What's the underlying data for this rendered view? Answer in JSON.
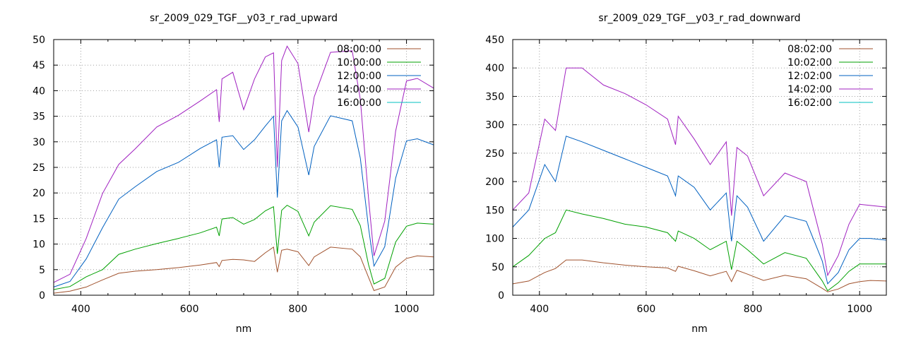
{
  "chart_data": [
    {
      "type": "line",
      "title": "sr_2009_029_TGF__y03_r_rad_upward",
      "xlabel": "nm",
      "ylabel": "",
      "xlim": [
        350,
        1050
      ],
      "ylim": [
        0,
        50
      ],
      "xticks": [
        400,
        600,
        800,
        1000
      ],
      "yticks": [
        0,
        5,
        10,
        15,
        20,
        25,
        30,
        35,
        40,
        45,
        50
      ],
      "grid": true,
      "legend_position": "top-right",
      "series": [
        {
          "name": "08:00:00",
          "color": "#a0522d",
          "x": [
            350,
            380,
            410,
            440,
            470,
            500,
            540,
            580,
            620,
            650,
            655,
            660,
            680,
            700,
            720,
            740,
            755,
            762,
            770,
            780,
            800,
            820,
            830,
            860,
            900,
            915,
            930,
            940,
            960,
            980,
            1000,
            1020,
            1050
          ],
          "y": [
            0.4,
            0.8,
            1.6,
            3.0,
            4.3,
            4.7,
            5.0,
            5.4,
            5.9,
            6.4,
            5.6,
            6.8,
            7.0,
            6.9,
            6.6,
            8.3,
            9.4,
            4.5,
            8.8,
            9.0,
            8.5,
            5.8,
            7.5,
            9.4,
            9.0,
            7.5,
            3.5,
            0.9,
            1.6,
            5.5,
            7.2,
            7.7,
            7.5
          ]
        },
        {
          "name": "10:00:00",
          "color": "#00a000",
          "x": [
            350,
            380,
            410,
            440,
            470,
            500,
            540,
            580,
            620,
            650,
            655,
            660,
            680,
            700,
            720,
            740,
            755,
            762,
            770,
            780,
            800,
            820,
            830,
            860,
            900,
            915,
            930,
            940,
            960,
            980,
            1000,
            1020,
            1050
          ],
          "y": [
            1.1,
            1.7,
            3.6,
            5.0,
            8.0,
            9.0,
            10.1,
            11.1,
            12.2,
            13.3,
            11.6,
            14.9,
            15.2,
            13.9,
            14.8,
            16.5,
            17.3,
            8.1,
            16.6,
            17.6,
            16.4,
            11.6,
            14.3,
            17.5,
            16.8,
            13.6,
            6.0,
            2.2,
            3.3,
            10.4,
            13.5,
            14.1,
            13.9
          ]
        },
        {
          "name": "12:00:00",
          "color": "#0060c0",
          "x": [
            350,
            380,
            410,
            440,
            470,
            500,
            540,
            580,
            620,
            650,
            655,
            660,
            680,
            700,
            720,
            740,
            755,
            762,
            770,
            780,
            800,
            820,
            830,
            860,
            900,
            915,
            930,
            940,
            960,
            980,
            1000,
            1020,
            1050
          ],
          "y": [
            1.6,
            2.7,
            7.1,
            13.2,
            18.8,
            21.2,
            24.2,
            26.0,
            28.7,
            30.4,
            25.0,
            30.9,
            31.2,
            28.5,
            30.4,
            33.1,
            35.0,
            19.1,
            34.1,
            36.1,
            32.9,
            23.5,
            29.1,
            35.1,
            34.1,
            26.8,
            13.2,
            5.7,
            9.5,
            22.9,
            30.2,
            30.6,
            29.4
          ]
        },
        {
          "name": "14:00:00",
          "color": "#a020c0",
          "x": [
            350,
            380,
            410,
            440,
            470,
            500,
            540,
            580,
            620,
            650,
            655,
            660,
            680,
            700,
            720,
            740,
            755,
            762,
            770,
            780,
            800,
            820,
            830,
            860,
            900,
            915,
            930,
            940,
            960,
            980,
            1000,
            1020,
            1050
          ],
          "y": [
            2.5,
            4.1,
            11.1,
            19.9,
            25.6,
            28.6,
            32.9,
            35.2,
            38.0,
            40.2,
            33.9,
            42.3,
            43.6,
            36.3,
            42.3,
            46.6,
            47.4,
            25.1,
            45.9,
            48.7,
            45.3,
            31.9,
            38.8,
            47.5,
            47.8,
            38.3,
            19.0,
            7.7,
            14.5,
            32.1,
            41.9,
            42.4,
            40.5
          ]
        },
        {
          "name": "16:00:00",
          "color": "#00c0c0",
          "x": [],
          "y": []
        }
      ]
    },
    {
      "type": "line",
      "title": "sr_2009_029_TGF__y03_r_rad_downward",
      "xlabel": "nm",
      "ylabel": "",
      "xlim": [
        350,
        1050
      ],
      "ylim": [
        0,
        450
      ],
      "xticks": [
        400,
        600,
        800,
        1000
      ],
      "yticks": [
        0,
        50,
        100,
        150,
        200,
        250,
        300,
        350,
        400,
        450
      ],
      "grid": true,
      "legend_position": "top-right",
      "series": [
        {
          "name": "08:02:00",
          "color": "#a0522d",
          "x": [
            350,
            380,
            410,
            430,
            450,
            480,
            520,
            560,
            600,
            640,
            655,
            660,
            690,
            720,
            750,
            760,
            770,
            790,
            820,
            860,
            900,
            930,
            940,
            960,
            980,
            1000,
            1020,
            1050
          ],
          "y": [
            20,
            25,
            40,
            47,
            62,
            62,
            57,
            53,
            50,
            48,
            42,
            51,
            43,
            34,
            42,
            24,
            44,
            37,
            26,
            35,
            29,
            12,
            6,
            11,
            20,
            24,
            26,
            25
          ]
        },
        {
          "name": "10:02:00",
          "color": "#00a000",
          "x": [
            350,
            380,
            410,
            430,
            450,
            480,
            520,
            560,
            600,
            640,
            655,
            660,
            690,
            720,
            750,
            760,
            770,
            790,
            820,
            860,
            900,
            930,
            940,
            960,
            980,
            1000,
            1020,
            1050
          ],
          "y": [
            50,
            70,
            100,
            110,
            150,
            143,
            135,
            125,
            120,
            110,
            95,
            113,
            100,
            80,
            95,
            45,
            95,
            80,
            55,
            75,
            65,
            25,
            8,
            22,
            42,
            55,
            55,
            55
          ]
        },
        {
          "name": "12:02:00",
          "color": "#0060c0",
          "x": [
            350,
            380,
            410,
            430,
            450,
            480,
            520,
            560,
            600,
            640,
            655,
            660,
            690,
            720,
            750,
            760,
            770,
            790,
            820,
            860,
            900,
            930,
            940,
            960,
            980,
            1000,
            1020,
            1050
          ],
          "y": [
            120,
            150,
            230,
            200,
            280,
            270,
            255,
            240,
            225,
            210,
            175,
            210,
            190,
            150,
            180,
            95,
            175,
            155,
            95,
            140,
            130,
            60,
            20,
            40,
            80,
            100,
            100,
            97
          ]
        },
        {
          "name": "14:02:00",
          "color": "#a020c0",
          "x": [
            350,
            380,
            410,
            430,
            450,
            480,
            520,
            560,
            600,
            640,
            655,
            660,
            690,
            720,
            750,
            760,
            770,
            790,
            820,
            860,
            900,
            930,
            940,
            960,
            980,
            1000,
            1020,
            1050
          ],
          "y": [
            150,
            180,
            310,
            290,
            400,
            400,
            370,
            355,
            335,
            310,
            265,
            315,
            275,
            230,
            270,
            140,
            260,
            245,
            175,
            215,
            200,
            90,
            35,
            70,
            125,
            160,
            158,
            155
          ]
        },
        {
          "name": "16:02:00",
          "color": "#00c0c0",
          "x": [],
          "y": []
        }
      ]
    }
  ]
}
